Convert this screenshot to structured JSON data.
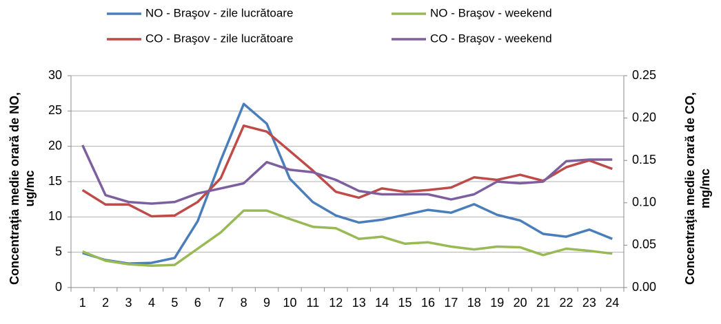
{
  "chart_data": {
    "type": "line",
    "categories": [
      "1",
      "2",
      "3",
      "4",
      "5",
      "6",
      "7",
      "8",
      "9",
      "10",
      "11",
      "12",
      "13",
      "14",
      "15",
      "16",
      "17",
      "18",
      "19",
      "20",
      "21",
      "22",
      "23",
      "24"
    ],
    "y_label": [
      "Concentraţia medie orară de NO,",
      "ug/mc"
    ],
    "y2_label": [
      "Concentraţia medie orară de CO,",
      "mg/mc"
    ],
    "ylim": [
      0,
      30
    ],
    "yticks": [
      0,
      5,
      10,
      15,
      20,
      25,
      30
    ],
    "y2lim": [
      0,
      0.25
    ],
    "y2ticks": [
      {
        "value": 0,
        "label": "0.00"
      },
      {
        "value": 0.05,
        "label": "0.05"
      },
      {
        "value": 0.1,
        "label": "0.10"
      },
      {
        "value": 0.15,
        "label": "0.15"
      },
      {
        "value": 0.2,
        "label": "0.20"
      },
      {
        "value": 0.25,
        "label": "0.25"
      }
    ],
    "grid": true,
    "legend": "top",
    "series": [
      {
        "name": "NO - Braşov - zile lucrătoare",
        "color": "#4a7ebb",
        "values": [
          4.9,
          3.9,
          3.4,
          3.5,
          4.2,
          9.4,
          18,
          26,
          23.2,
          15.4,
          12.1,
          10.2,
          9.2,
          9.6,
          10.3,
          11,
          10.6,
          11.8,
          10.3,
          9.5,
          7.6,
          7.2,
          8.2,
          6.9
        ]
      },
      {
        "name": "NO - Braşov - weekend",
        "color": "#98b954",
        "values": [
          5.1,
          3.8,
          3.3,
          3.1,
          3.2,
          5.5,
          7.8,
          10.9,
          10.9,
          9.7,
          8.6,
          8.4,
          6.9,
          7.2,
          6.2,
          6.4,
          5.8,
          5.4,
          5.8,
          5.7,
          4.6,
          5.5,
          5.2,
          4.8
        ]
      },
      {
        "name": "CO - Braşov - zile lucrătoare",
        "color": "#be4b48",
        "axis": "y2",
        "values": [
          0.115,
          0.098,
          0.098,
          0.084,
          0.085,
          0.101,
          0.129,
          0.191,
          0.184,
          0.161,
          0.138,
          0.113,
          0.106,
          0.117,
          0.113,
          0.115,
          0.118,
          0.13,
          0.127,
          0.133,
          0.126,
          0.142,
          0.15,
          0.14
        ]
      },
      {
        "name": "CO - Braşov - weekend",
        "color": "#7d5fa0",
        "axis": "y2",
        "values": [
          0.168,
          0.109,
          0.101,
          0.099,
          0.101,
          0.111,
          0.117,
          0.123,
          0.148,
          0.139,
          0.136,
          0.127,
          0.114,
          0.11,
          0.11,
          0.11,
          0.104,
          0.11,
          0.125,
          0.123,
          0.125,
          0.149,
          0.151,
          0.151
        ]
      }
    ]
  }
}
